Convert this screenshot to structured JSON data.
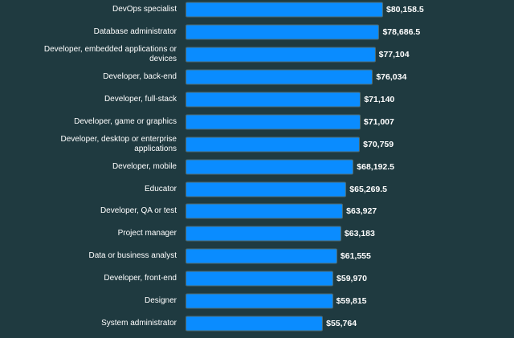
{
  "chart_data": {
    "type": "bar",
    "orientation": "horizontal",
    "categories": [
      "DevOps specialist",
      "Database administrator",
      "Developer, embedded applications or devices",
      "Developer, back-end",
      "Developer, full-stack",
      "Developer, game or graphics",
      "Developer, desktop or enterprise applications",
      "Developer, mobile",
      "Educator",
      "Developer, QA or test",
      "Project manager",
      "Data or business analyst",
      "Developer, front-end",
      "Designer",
      "System administrator"
    ],
    "values": [
      80158.5,
      78686.5,
      77104,
      76034,
      71140,
      71007,
      70759,
      68192.5,
      65269.5,
      63927,
      63183,
      61555,
      59970,
      59815,
      55764
    ],
    "value_labels": [
      "$80,158.5",
      "$78,686.5",
      "$77,104",
      "$76,034",
      "$71,140",
      "$71,007",
      "$70,759",
      "$68,192.5",
      "$65,269.5",
      "$63,927",
      "$63,183",
      "$61,555",
      "$59,970",
      "$59,815",
      "$55,764"
    ],
    "xlim": [
      0,
      80158.5
    ],
    "grid": false,
    "colors": {
      "bar": "#0a8cff",
      "background": "#1f3a40",
      "bar_border": "#4d6a70"
    }
  }
}
